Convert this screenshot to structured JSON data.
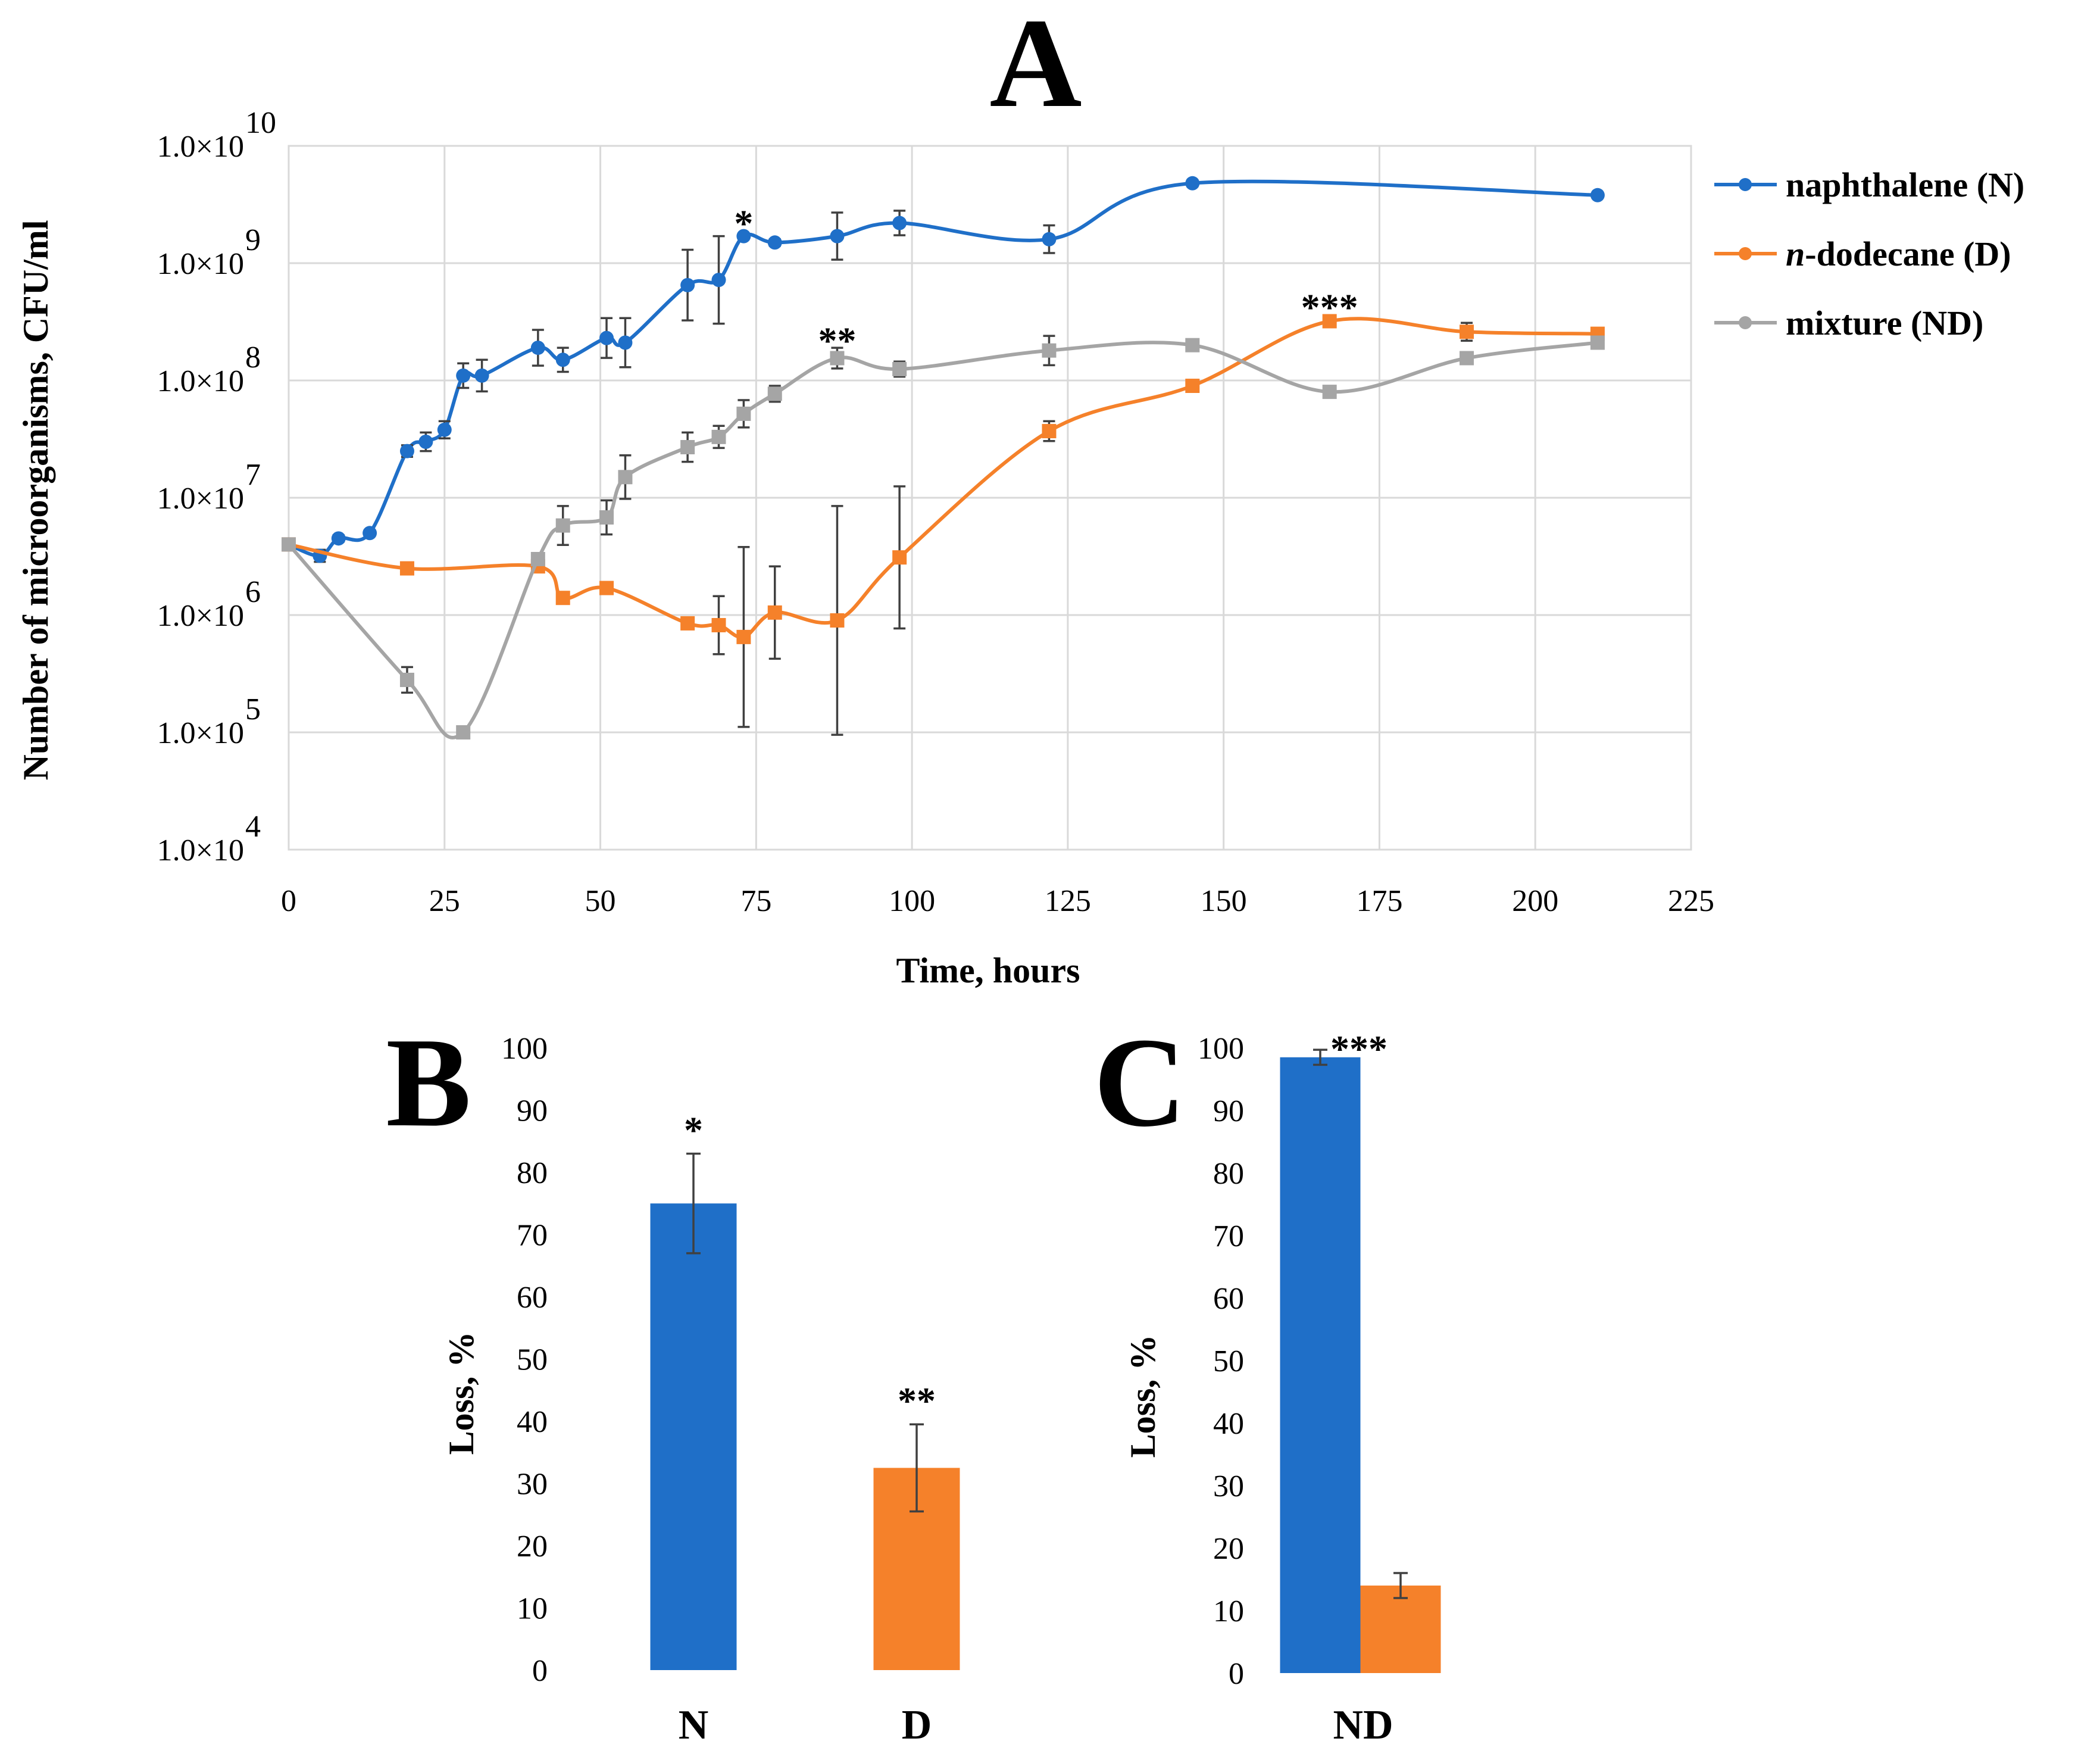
{
  "chart_data": [
    {
      "type": "line",
      "panel": "A",
      "xlabel": "Time, hours",
      "ylabel": "Number of microorganisms,   CFU/ml",
      "xlim": [
        0,
        225
      ],
      "x_ticks": [
        0,
        25,
        50,
        75,
        100,
        125,
        150,
        175,
        200,
        225
      ],
      "y_scale": "log",
      "ylim": [
        10000,
        10000000000
      ],
      "y_ticks": [
        {
          "base": "1.0×10",
          "exp": "10",
          "value": 10000000000
        },
        {
          "base": "1.0×10",
          "exp": "9",
          "value": 1000000000
        },
        {
          "base": "1.0×10",
          "exp": "8",
          "value": 100000000
        },
        {
          "base": "1.0×10",
          "exp": "7",
          "value": 10000000
        },
        {
          "base": "1.0×10",
          "exp": "6",
          "value": 1000000
        },
        {
          "base": "1.0×10",
          "exp": "5",
          "value": 100000
        },
        {
          "base": "1.0×10",
          "exp": "4",
          "value": 10000
        }
      ],
      "legend": {
        "position": "right"
      },
      "series": [
        {
          "name": "naphthalene (N)",
          "label_prefix": "",
          "label_rest": "naphthalene (N)",
          "color": "#1f6fc8",
          "marker": "circle",
          "points": [
            {
              "x": 0,
              "y": 4000000,
              "hi": 4500000
            },
            {
              "x": 5,
              "y": 3200000,
              "hi": 3600000
            },
            {
              "x": 8,
              "y": 4500000,
              "hi": 4800000
            },
            {
              "x": 13,
              "y": 5000000,
              "hi": 5300000
            },
            {
              "x": 19,
              "y": 25000000,
              "hi": 28000000
            },
            {
              "x": 22,
              "y": 30000000,
              "hi": 36000000
            },
            {
              "x": 25,
              "y": 38000000,
              "hi": 45000000
            },
            {
              "x": 28,
              "y": 110000000,
              "hi": 140000000
            },
            {
              "x": 31,
              "y": 110000000,
              "hi": 150000000
            },
            {
              "x": 40,
              "y": 190000000,
              "hi": 270000000
            },
            {
              "x": 44,
              "y": 150000000,
              "hi": 190000000
            },
            {
              "x": 51,
              "y": 230000000,
              "hi": 340000000
            },
            {
              "x": 54,
              "y": 210000000,
              "hi": 340000000
            },
            {
              "x": 64,
              "y": 650000000,
              "hi": 1300000000
            },
            {
              "x": 69,
              "y": 720000000,
              "hi": 1700000000
            },
            {
              "x": 73,
              "y": 1700000000,
              "hi": 1800000000
            },
            {
              "x": 78,
              "y": 1500000000,
              "hi": 1600000000
            },
            {
              "x": 88,
              "y": 1700000000,
              "hi": 2700000000
            },
            {
              "x": 98,
              "y": 2200000000,
              "hi": 2800000000
            },
            {
              "x": 122,
              "y": 1600000000,
              "hi": 2100000000
            },
            {
              "x": 145,
              "y": 4800000000,
              "hi": 5100000000
            },
            {
              "x": 210,
              "y": 3800000000,
              "hi": 4000000000
            }
          ]
        },
        {
          "name": "n-dodecane (D)",
          "label_prefix": "n",
          "label_rest": "-dodecane (D)",
          "color": "#f5812a",
          "marker": "square",
          "points": [
            {
              "x": 0,
              "y": 4000000,
              "hi": 4300000
            },
            {
              "x": 19,
              "y": 2500000,
              "hi": 2600000
            },
            {
              "x": 40,
              "y": 2600000,
              "hi": 2700000
            },
            {
              "x": 44,
              "y": 1400000,
              "hi": 1500000
            },
            {
              "x": 51,
              "y": 1700000,
              "hi": 1800000
            },
            {
              "x": 64,
              "y": 850000,
              "hi": 900000
            },
            {
              "x": 69,
              "y": 820000,
              "hi": 1450000
            },
            {
              "x": 73,
              "y": 650000,
              "hi": 3800000
            },
            {
              "x": 78,
              "y": 1050000,
              "hi": 2600000
            },
            {
              "x": 88,
              "y": 900000,
              "hi": 8500000
            },
            {
              "x": 98,
              "y": 3100000,
              "hi": 12500000
            },
            {
              "x": 122,
              "y": 37000000,
              "hi": 45000000
            },
            {
              "x": 145,
              "y": 90000000,
              "hi": 100000000
            },
            {
              "x": 167,
              "y": 320000000,
              "hi": 340000000
            },
            {
              "x": 189,
              "y": 260000000,
              "hi": 310000000
            },
            {
              "x": 210,
              "y": 250000000,
              "hi": 270000000
            }
          ]
        },
        {
          "name": "mixture (ND)",
          "label_prefix": "",
          "label_rest": "mixture (ND)",
          "color": "#a5a5a5",
          "marker": "square",
          "points": [
            {
              "x": 0,
              "y": 4000000,
              "hi": 4300000
            },
            {
              "x": 19,
              "y": 280000,
              "hi": 360000
            },
            {
              "x": 28,
              "y": 100000,
              "hi": 105000
            },
            {
              "x": 40,
              "y": 3000000,
              "hi": 3300000
            },
            {
              "x": 44,
              "y": 5800000,
              "hi": 8500000
            },
            {
              "x": 51,
              "y": 6800000,
              "hi": 9500000
            },
            {
              "x": 54,
              "y": 15000000,
              "hi": 23000000
            },
            {
              "x": 64,
              "y": 27000000,
              "hi": 36000000
            },
            {
              "x": 69,
              "y": 33000000,
              "hi": 41000000
            },
            {
              "x": 73,
              "y": 52000000,
              "hi": 68000000
            },
            {
              "x": 78,
              "y": 77000000,
              "hi": 90000000
            },
            {
              "x": 88,
              "y": 155000000,
              "hi": 190000000
            },
            {
              "x": 98,
              "y": 125000000,
              "hi": 145000000
            },
            {
              "x": 122,
              "y": 180000000,
              "hi": 240000000
            },
            {
              "x": 145,
              "y": 200000000,
              "hi": 215000000
            },
            {
              "x": 167,
              "y": 80000000,
              "hi": 85000000
            },
            {
              "x": 189,
              "y": 155000000,
              "hi": 165000000
            },
            {
              "x": 210,
              "y": 210000000,
              "hi": 225000000
            }
          ]
        }
      ],
      "annotations": [
        {
          "text": "*",
          "x": 73,
          "y": 2600000000
        },
        {
          "text": "**",
          "x": 88,
          "y": 260000000
        },
        {
          "text": "***",
          "x": 167,
          "y": 500000000
        }
      ]
    },
    {
      "type": "bar",
      "panel": "B",
      "ylabel": "Loss, %",
      "ylim": [
        0,
        100
      ],
      "y_ticks": [
        0,
        10,
        20,
        30,
        40,
        50,
        60,
        70,
        80,
        90,
        100
      ],
      "bars": [
        {
          "category": "N",
          "value": 75,
          "err": 8,
          "color": "#1f6fc8",
          "annotation": "*"
        },
        {
          "category": "D",
          "value": 32.5,
          "err": 7,
          "color": "#f5812a",
          "annotation": "**"
        }
      ]
    },
    {
      "type": "bar",
      "panel": "C",
      "ylabel": "Loss, %",
      "ylim": [
        0,
        100
      ],
      "y_ticks": [
        0,
        10,
        20,
        30,
        40,
        50,
        60,
        70,
        80,
        90,
        100
      ],
      "category": "ND",
      "bars": [
        {
          "name": "N",
          "value": 98.5,
          "err": 1.2,
          "color": "#1f6fc8",
          "annotation": "***"
        },
        {
          "name": "D",
          "value": 14,
          "err": 2,
          "color": "#f5812a",
          "annotation": ""
        }
      ]
    }
  ]
}
